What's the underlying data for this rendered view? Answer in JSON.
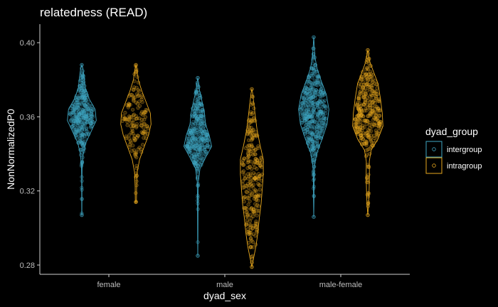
{
  "chart_data": {
    "type": "violin",
    "title": "relatedness (READ)",
    "xlabel": "dyad_sex",
    "ylabel": "NonNormalizedP0",
    "categories": [
      "female",
      "male",
      "male-female"
    ],
    "ylim": [
      0.275,
      0.41
    ],
    "yticks": [
      0.28,
      0.32,
      0.36,
      0.4
    ],
    "yticklabels": [
      "0.28",
      "0.32",
      "0.36",
      "0.40"
    ],
    "legend": {
      "title": "dyad_group",
      "position": "right"
    },
    "grid": false,
    "series": [
      {
        "name": "intergroup",
        "color": "#3fa7c4",
        "groups": [
          {
            "category": "female",
            "min": 0.307,
            "max": 0.388,
            "median": 0.359,
            "n": 340,
            "profile": [
              [
                0.307,
                0.003
              ],
              [
                0.318,
                0.006
              ],
              [
                0.326,
                0.008
              ],
              [
                0.334,
                0.02
              ],
              [
                0.34,
                0.08
              ],
              [
                0.346,
                0.22
              ],
              [
                0.352,
                0.5
              ],
              [
                0.358,
                0.78
              ],
              [
                0.364,
                0.72
              ],
              [
                0.37,
                0.38
              ],
              [
                0.376,
                0.18
              ],
              [
                0.382,
                0.12
              ],
              [
                0.386,
                0.06
              ],
              [
                0.388,
                0.0
              ]
            ]
          },
          {
            "category": "male",
            "min": 0.285,
            "max": 0.381,
            "median": 0.346,
            "n": 340,
            "profile": [
              [
                0.285,
                0.0
              ],
              [
                0.295,
                0.008
              ],
              [
                0.305,
                0.01
              ],
              [
                0.315,
                0.015
              ],
              [
                0.325,
                0.03
              ],
              [
                0.332,
                0.12
              ],
              [
                0.338,
                0.42
              ],
              [
                0.344,
                0.75
              ],
              [
                0.35,
                0.62
              ],
              [
                0.356,
                0.42
              ],
              [
                0.362,
                0.36
              ],
              [
                0.368,
                0.24
              ],
              [
                0.374,
                0.1
              ],
              [
                0.378,
                0.05
              ],
              [
                0.381,
                0.0
              ]
            ]
          },
          {
            "category": "male-female",
            "min": 0.306,
            "max": 0.403,
            "median": 0.364,
            "n": 420,
            "profile": [
              [
                0.306,
                0.0
              ],
              [
                0.315,
                0.012
              ],
              [
                0.325,
                0.02
              ],
              [
                0.333,
                0.04
              ],
              [
                0.34,
                0.15
              ],
              [
                0.348,
                0.45
              ],
              [
                0.356,
                0.72
              ],
              [
                0.364,
                0.82
              ],
              [
                0.372,
                0.68
              ],
              [
                0.38,
                0.38
              ],
              [
                0.386,
                0.18
              ],
              [
                0.392,
                0.07
              ],
              [
                0.398,
                0.03
              ],
              [
                0.403,
                0.0
              ]
            ]
          }
        ]
      },
      {
        "name": "intragroup",
        "color": "#e8a81e",
        "groups": [
          {
            "category": "female",
            "min": 0.314,
            "max": 0.388,
            "median": 0.357,
            "n": 150,
            "profile": [
              [
                0.314,
                0.03
              ],
              [
                0.322,
                0.04
              ],
              [
                0.33,
                0.07
              ],
              [
                0.337,
                0.2
              ],
              [
                0.343,
                0.42
              ],
              [
                0.35,
                0.68
              ],
              [
                0.356,
                0.82
              ],
              [
                0.362,
                0.78
              ],
              [
                0.368,
                0.55
              ],
              [
                0.374,
                0.32
              ],
              [
                0.38,
                0.13
              ],
              [
                0.385,
                0.06
              ],
              [
                0.388,
                0.0
              ]
            ]
          },
          {
            "category": "male",
            "min": 0.279,
            "max": 0.375,
            "median": 0.332,
            "n": 260,
            "profile": [
              [
                0.279,
                0.0
              ],
              [
                0.284,
                0.1
              ],
              [
                0.29,
                0.22
              ],
              [
                0.297,
                0.32
              ],
              [
                0.305,
                0.4
              ],
              [
                0.313,
                0.5
              ],
              [
                0.321,
                0.56
              ],
              [
                0.329,
                0.62
              ],
              [
                0.337,
                0.62
              ],
              [
                0.345,
                0.44
              ],
              [
                0.353,
                0.28
              ],
              [
                0.361,
                0.18
              ],
              [
                0.368,
                0.1
              ],
              [
                0.373,
                0.04
              ],
              [
                0.375,
                0.0
              ]
            ]
          },
          {
            "category": "male-female",
            "min": 0.307,
            "max": 0.396,
            "median": 0.36,
            "n": 340,
            "profile": [
              [
                0.307,
                0.0
              ],
              [
                0.312,
                0.04
              ],
              [
                0.32,
                0.07
              ],
              [
                0.328,
                0.09
              ],
              [
                0.336,
                0.08
              ],
              [
                0.342,
                0.18
              ],
              [
                0.348,
                0.55
              ],
              [
                0.355,
                0.82
              ],
              [
                0.362,
                0.78
              ],
              [
                0.37,
                0.68
              ],
              [
                0.378,
                0.55
              ],
              [
                0.385,
                0.28
              ],
              [
                0.39,
                0.1
              ],
              [
                0.394,
                0.04
              ],
              [
                0.396,
                0.0
              ]
            ]
          }
        ]
      }
    ]
  }
}
